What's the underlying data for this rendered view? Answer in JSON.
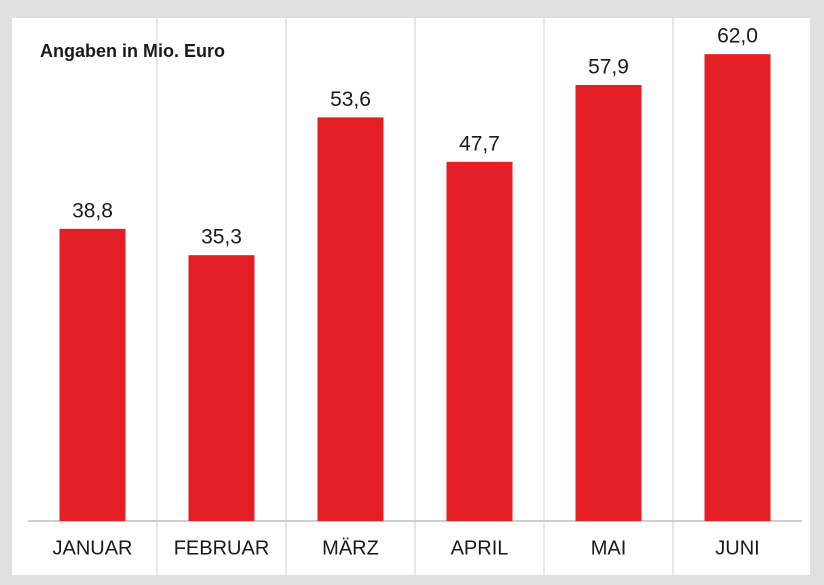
{
  "chart_data": {
    "type": "bar",
    "title": "Angaben in Mio. Euro",
    "categories": [
      "JANUAR",
      "FEBRUAR",
      "MÄRZ",
      "APRIL",
      "MAI",
      "JUNI"
    ],
    "values": [
      38.8,
      35.3,
      53.6,
      47.7,
      57.9,
      62.0
    ],
    "value_labels": [
      "38,8",
      "35,3",
      "53,6",
      "47,7",
      "57,9",
      "62,0"
    ],
    "color": "#e31e24"
  }
}
